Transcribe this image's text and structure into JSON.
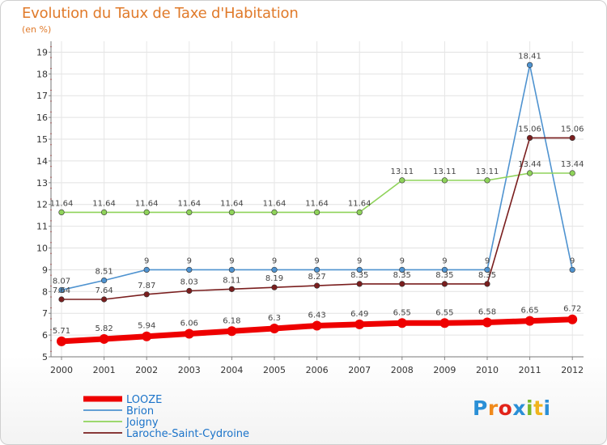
{
  "title": "Evolution du Taux de Taxe d'Habitation",
  "subtitle": "(en %)",
  "logo": {
    "text": "Proxiti",
    "letters": [
      "P",
      "r",
      "o",
      "x",
      "i",
      "t",
      "i"
    ],
    "colors": [
      "#2a8fd6",
      "#f08a1c",
      "#e2231a",
      "#2a8fd6",
      "#7ab929",
      "#f0b41c",
      "#2a8fd6"
    ]
  },
  "chart_data": {
    "type": "line",
    "x": [
      "2000",
      "2001",
      "2002",
      "2003",
      "2004",
      "2005",
      "2006",
      "2007",
      "2008",
      "2009",
      "2010",
      "2011",
      "2012"
    ],
    "yticks": [
      "5",
      "6",
      "7",
      "8",
      "9",
      "10",
      "11",
      "12",
      "13",
      "14",
      "15",
      "16",
      "17",
      "18",
      "19"
    ],
    "ylim": [
      5,
      19.5
    ],
    "grid": true,
    "legend_position": "bottom-left",
    "series": [
      {
        "name": "LOOZE",
        "color": "#ee0000",
        "values": [
          5.71,
          5.82,
          5.94,
          6.06,
          6.18,
          6.3,
          6.43,
          6.49,
          6.55,
          6.55,
          6.58,
          6.65,
          6.72
        ],
        "labels": [
          "5.71",
          "5.82",
          "5.94",
          "6.06",
          "6.18",
          "6.3",
          "6.43",
          "6.49",
          "6.55",
          "6.55",
          "6.58",
          "6.65",
          "6.72"
        ]
      },
      {
        "name": "Brion",
        "color": "#4f93d0",
        "values": [
          8.07,
          8.51,
          9,
          9,
          9,
          9,
          9,
          9,
          9,
          9,
          9,
          18.41,
          9
        ],
        "labels": [
          "8.07",
          "8.51",
          "9",
          "9",
          "9",
          "9",
          "9",
          "9",
          "9",
          "9",
          "9",
          "18.41",
          "9"
        ]
      },
      {
        "name": "Joigny",
        "color": "#8fd35a",
        "values": [
          11.64,
          11.64,
          11.64,
          11.64,
          11.64,
          11.64,
          11.64,
          11.64,
          13.11,
          13.11,
          13.11,
          13.44,
          13.44
        ],
        "labels": [
          "11.64",
          "11.64",
          "11.64",
          "11.64",
          "11.64",
          "11.64",
          "11.64",
          "11.64",
          "13.11",
          "13.11",
          "13.11",
          "13.44",
          "13.44"
        ]
      },
      {
        "name": "Laroche-Saint-Cydroine",
        "color": "#7a1e1e",
        "values": [
          7.64,
          7.64,
          7.87,
          8.03,
          8.11,
          8.19,
          8.27,
          8.35,
          8.35,
          8.35,
          8.35,
          15.06,
          15.06
        ],
        "labels": [
          "7.64",
          "7.64",
          "7.87",
          "8.03",
          "8.11",
          "8.19",
          "8.27",
          "8.35",
          "8.35",
          "8.35",
          "8.35",
          "15.06",
          "15.06"
        ]
      }
    ]
  }
}
